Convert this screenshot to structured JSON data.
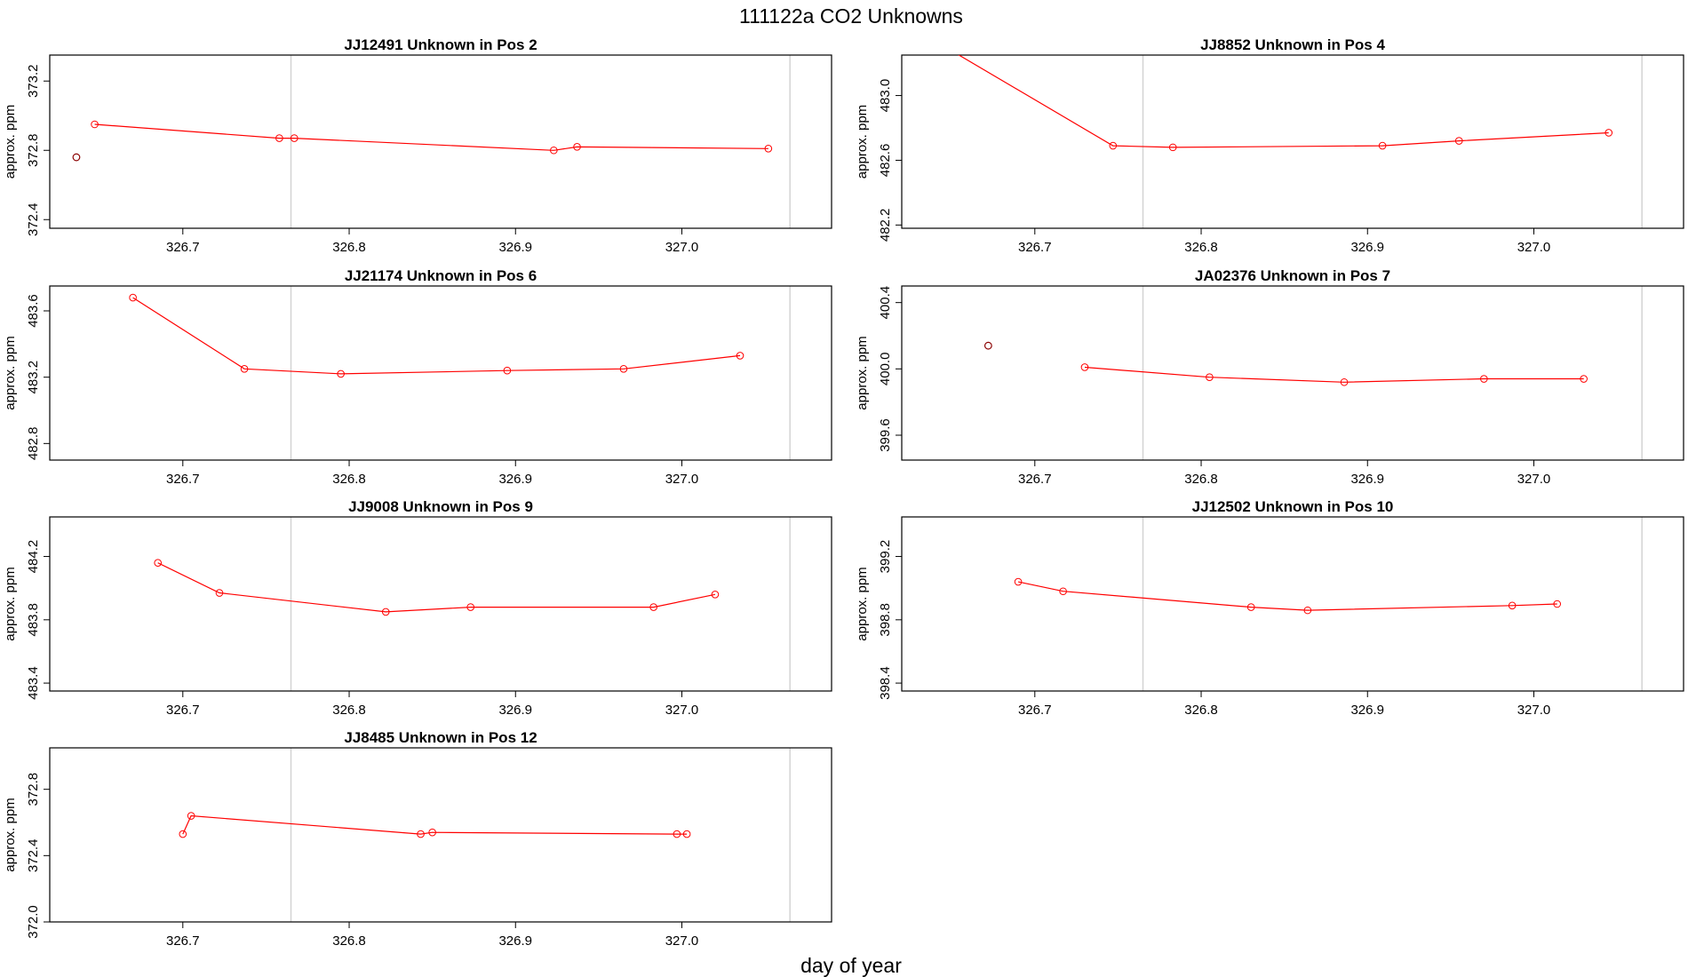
{
  "figure": {
    "title": "111122a  CO2 Unknowns",
    "xlabel": "day of year"
  },
  "colors": {
    "series": "#ff0000",
    "standalone_point": "#8b0000",
    "reference_line": "#d3d3d3",
    "frame": "#000000"
  },
  "chart_data": [
    {
      "type": "line",
      "title": "JJ12491    Unknown in Pos 2",
      "xlabel": "",
      "ylabel": "approx. ppm",
      "xlim": [
        326.62,
        327.09
      ],
      "ylim": [
        372.35,
        373.35
      ],
      "xticks": [
        "326.7",
        "326.8",
        "326.9",
        "327.0"
      ],
      "yticks": [
        "372.4",
        "372.8",
        "373.2"
      ],
      "vlines": [
        326.765,
        327.065
      ],
      "grid": false,
      "lone_points": [
        {
          "x": 326.636,
          "y": 372.76
        }
      ],
      "series": [
        {
          "x": [
            326.647,
            326.758,
            326.767,
            326.923,
            326.937,
            327.052
          ],
          "y": [
            372.95,
            372.87,
            372.87,
            372.8,
            372.82,
            372.81
          ]
        }
      ]
    },
    {
      "type": "line",
      "title": "JJ8852    Unknown in Pos 4",
      "xlabel": "",
      "ylabel": "approx. ppm",
      "xlim": [
        326.62,
        327.09
      ],
      "ylim": [
        482.18,
        483.25
      ],
      "xticks": [
        "326.7",
        "326.8",
        "326.9",
        "327.0"
      ],
      "yticks": [
        "482.2",
        "482.6",
        "483.0"
      ],
      "vlines": [
        326.765,
        327.065
      ],
      "grid": false,
      "lone_points": [],
      "series": [
        {
          "x": [
            326.58,
            326.747,
            326.783,
            326.909,
            326.955,
            327.045
          ],
          "y": [
            483.7,
            482.69,
            482.68,
            482.69,
            482.72,
            482.77
          ]
        }
      ]
    },
    {
      "type": "line",
      "title": "JJ21174    Unknown in Pos 6",
      "xlabel": "",
      "ylabel": "approx. ppm",
      "xlim": [
        326.62,
        327.09
      ],
      "ylim": [
        482.7,
        483.75
      ],
      "xticks": [
        "326.7",
        "326.8",
        "326.9",
        "327.0"
      ],
      "yticks": [
        "482.8",
        "483.2",
        "483.6"
      ],
      "vlines": [
        326.765,
        327.065
      ],
      "grid": false,
      "lone_points": [],
      "series": [
        {
          "x": [
            326.67,
            326.737,
            326.795,
            326.895,
            326.965,
            327.035
          ],
          "y": [
            483.68,
            483.25,
            483.22,
            483.24,
            483.25,
            483.33
          ]
        }
      ]
    },
    {
      "type": "line",
      "title": "JA02376    Unknown in Pos 7",
      "xlabel": "",
      "ylabel": "approx. ppm",
      "xlim": [
        326.62,
        327.09
      ],
      "ylim": [
        399.45,
        400.5
      ],
      "xticks": [
        "326.7",
        "326.8",
        "326.9",
        "327.0"
      ],
      "yticks": [
        "399.6",
        "400.0",
        "400.4"
      ],
      "vlines": [
        326.765,
        327.065
      ],
      "grid": false,
      "lone_points": [
        {
          "x": 326.672,
          "y": 400.14
        }
      ],
      "series": [
        {
          "x": [
            326.73,
            326.805,
            326.886,
            326.97,
            327.03
          ],
          "y": [
            400.01,
            399.95,
            399.92,
            399.94,
            399.94
          ]
        }
      ]
    },
    {
      "type": "line",
      "title": "JJ9008    Unknown in Pos 9",
      "xlabel": "",
      "ylabel": "approx. ppm",
      "xlim": [
        326.62,
        327.09
      ],
      "ylim": [
        483.35,
        484.45
      ],
      "xticks": [
        "326.7",
        "326.8",
        "326.9",
        "327.0"
      ],
      "yticks": [
        "483.4",
        "483.8",
        "484.2"
      ],
      "vlines": [
        326.765,
        327.065
      ],
      "grid": false,
      "lone_points": [],
      "series": [
        {
          "x": [
            326.685,
            326.722,
            326.822,
            326.873,
            326.983,
            327.02
          ],
          "y": [
            484.16,
            483.97,
            483.85,
            483.88,
            483.88,
            483.96
          ]
        }
      ]
    },
    {
      "type": "line",
      "title": "JJ12502    Unknown in Pos 10",
      "xlabel": "",
      "ylabel": "approx. ppm",
      "xlim": [
        326.62,
        327.09
      ],
      "ylim": [
        398.35,
        399.45
      ],
      "xticks": [
        "326.7",
        "326.8",
        "326.9",
        "327.0"
      ],
      "yticks": [
        "398.4",
        "398.8",
        "399.2"
      ],
      "vlines": [
        326.765,
        327.065
      ],
      "grid": false,
      "lone_points": [],
      "series": [
        {
          "x": [
            326.69,
            326.717,
            326.83,
            326.864,
            326.987,
            327.014
          ],
          "y": [
            399.04,
            398.98,
            398.88,
            398.86,
            398.89,
            398.9
          ]
        }
      ]
    },
    {
      "type": "line",
      "title": "JJ8485    Unknown in Pos 12",
      "xlabel": "",
      "ylabel": "approx. ppm",
      "xlim": [
        326.62,
        327.09
      ],
      "ylim": [
        372.0,
        373.05
      ],
      "xticks": [
        "326.7",
        "326.8",
        "326.9",
        "327.0"
      ],
      "yticks": [
        "372.0",
        "372.4",
        "372.8"
      ],
      "vlines": [
        326.765,
        327.065
      ],
      "grid": false,
      "lone_points": [],
      "series": [
        {
          "x": [
            326.7,
            326.705,
            326.843,
            326.85,
            326.997,
            327.003
          ],
          "y": [
            372.53,
            372.64,
            372.53,
            372.54,
            372.53,
            372.53
          ]
        }
      ]
    }
  ]
}
